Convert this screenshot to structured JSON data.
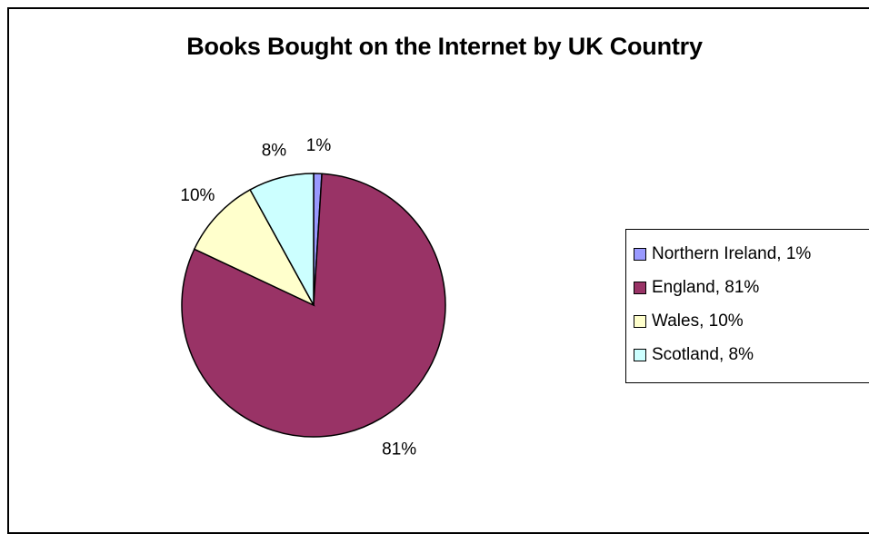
{
  "chart_data": {
    "type": "pie",
    "title": "Books Bought on the Internet by UK Country",
    "slices": [
      {
        "name": "Northern Ireland",
        "value": 1,
        "label": "1%",
        "legend": "Northern Ireland, 1%",
        "color": "#9999ff"
      },
      {
        "name": "England",
        "value": 81,
        "label": "81%",
        "legend": "England, 81%",
        "color": "#993366"
      },
      {
        "name": "Wales",
        "value": 10,
        "label": "10%",
        "legend": "Wales, 10%",
        "color": "#ffffcc"
      },
      {
        "name": "Scotland",
        "value": 8,
        "label": "8%",
        "legend": "Scotland, 8%",
        "color": "#ccffff"
      }
    ],
    "legend_position": "right"
  }
}
